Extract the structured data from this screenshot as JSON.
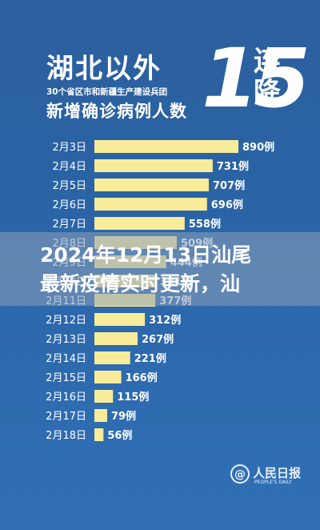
{
  "header": {
    "title": "湖北以外",
    "subtitle": "30个省区市和新疆生产建设兵团",
    "subtitle2": "新增确诊病例人数",
    "big_number": "15",
    "big_suffix": "连降"
  },
  "banner": {
    "line1": "2024年12月13日汕尾",
    "line2": "最新疫情实时更新，汕"
  },
  "logo": {
    "symbol": "@",
    "name": "人民日报",
    "sub": "PEOPLE'S DAILY"
  },
  "colors": {
    "bar": "#f8ec9a",
    "background": "#2c5f9d",
    "text": "#ffffff"
  },
  "chart_data": {
    "type": "bar",
    "orientation": "horizontal",
    "categories": [
      "2月3日",
      "2月4日",
      "2月5日",
      "2月6日",
      "2月7日",
      "2月8日",
      "2月9日",
      "2月10日",
      "2月11日",
      "2月12日",
      "2月13日",
      "2月14日",
      "2月15日",
      "2月16日",
      "2月17日",
      "2月18日"
    ],
    "values": [
      890,
      731,
      707,
      696,
      558,
      509,
      444,
      381,
      377,
      312,
      267,
      221,
      166,
      115,
      79,
      56
    ],
    "value_labels": [
      "890例",
      "731例",
      "707例",
      "696例",
      "558例",
      "509例",
      "444例",
      "381例",
      "377例",
      "312例",
      "267例",
      "221例",
      "166例",
      "115例",
      "79例",
      "56例"
    ],
    "xlim": [
      0,
      890
    ]
  }
}
